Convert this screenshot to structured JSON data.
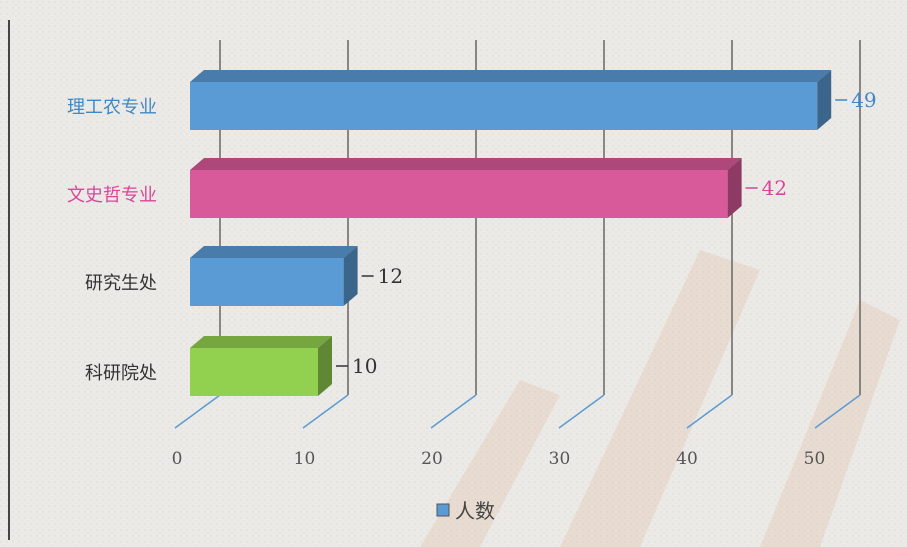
{
  "chart_data": {
    "type": "bar",
    "orientation": "horizontal",
    "style": "3d",
    "categories": [
      "理工农专业",
      "文史哲专业",
      "研究生处",
      "科研院处"
    ],
    "series": [
      {
        "name": "人数",
        "values": [
          49,
          42,
          12,
          10
        ]
      }
    ],
    "bar_colors": [
      "#5b9bd5",
      "#d95a9a",
      "#5b9bd5",
      "#92d050"
    ],
    "label_colors": [
      "#3f88c6",
      "#d8459a",
      "#333333",
      "#333333"
    ],
    "xlim": [
      0,
      50
    ],
    "xticks": [
      0,
      10,
      20,
      30,
      40,
      50
    ],
    "grid": true,
    "legend": {
      "position": "bottom",
      "entries": [
        "人数"
      ]
    }
  }
}
